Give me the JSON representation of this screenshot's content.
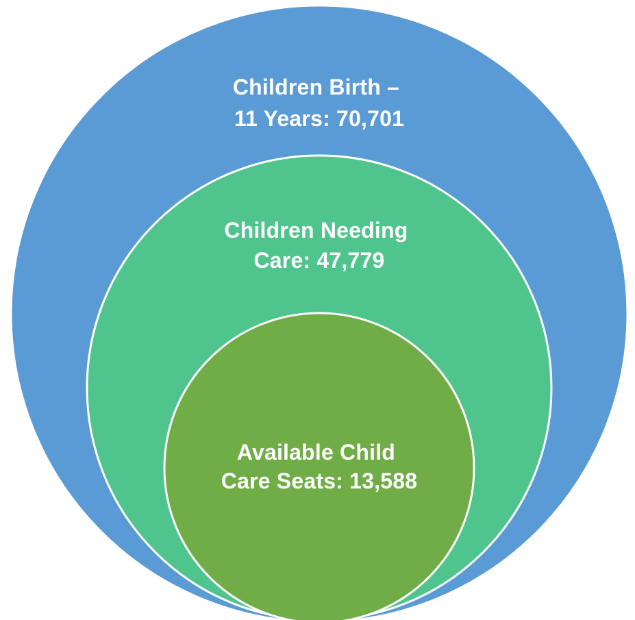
{
  "diagram": {
    "type": "nested-circles",
    "circles": [
      {
        "id": "outer",
        "label_lines": [
          "Children Birth –",
          "11 Years: 70,701"
        ],
        "name": "Children Birth – 11 Years",
        "value": 70701,
        "color": "#5b9bd5"
      },
      {
        "id": "middle",
        "label_lines": [
          "Children Needing",
          "Care: 47,779"
        ],
        "name": "Children Needing Care",
        "value": 47779,
        "color": "#4fc58d"
      },
      {
        "id": "inner",
        "label_lines": [
          "Available Child",
          "Care Seats: 13,588"
        ],
        "name": "Available Child Care Seats",
        "value": 13588,
        "color": "#70ad47"
      }
    ],
    "stroke_color": "#ffffff"
  }
}
